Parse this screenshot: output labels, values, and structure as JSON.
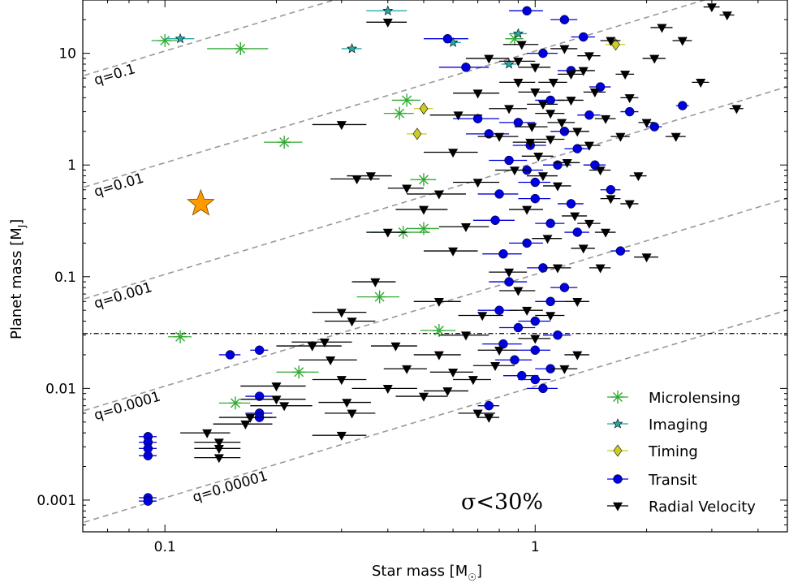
{
  "chart_data": {
    "type": "scatter",
    "xlabel": "Star mass [M",
    "xlabel_sub": "☉",
    "xlabel_close": "]",
    "ylabel": "Planet mass [M",
    "ylabel_sub": "J",
    "ylabel_close": "]",
    "xscale": "log",
    "yscale": "log",
    "xlim": [
      0.06,
      4.8
    ],
    "ylim": [
      0.00052,
      30
    ],
    "xticks": [
      {
        "v": 0.1,
        "label": "0.1"
      },
      {
        "v": 1,
        "label": "1"
      }
    ],
    "yticks": [
      {
        "v": 0.001,
        "label": "0.001"
      },
      {
        "v": 0.01,
        "label": "0.01"
      },
      {
        "v": 0.1,
        "label": "0.1"
      },
      {
        "v": 1,
        "label": "1"
      },
      {
        "v": 10,
        "label": "10"
      }
    ],
    "hline": 0.031,
    "ratio_lines": [
      {
        "q": 0.1,
        "label": "q=0.1",
        "label_x": 0.065
      },
      {
        "q": 0.01,
        "label": "q=0.01",
        "label_x": 0.065
      },
      {
        "q": 0.001,
        "label": "q=0.001",
        "label_x": 0.065
      },
      {
        "q": 0.0001,
        "label": "q=0.0001",
        "label_x": 0.065
      },
      {
        "q": 1e-05,
        "label": "q=0.00001",
        "label_x": 0.12
      }
    ],
    "annotation": "σ<30%",
    "highlight": {
      "x": 0.125,
      "y": 0.45,
      "color": "#ff9900"
    },
    "legend_position": "lower-right",
    "series": [
      {
        "name": "Microlensing",
        "marker": "asterisk",
        "color": "#33aa33",
        "points": [
          [
            0.1,
            13,
            0.008
          ],
          [
            0.16,
            11,
            0.03
          ],
          [
            0.21,
            1.6,
            0.025
          ],
          [
            0.11,
            0.029,
            0.008
          ],
          [
            0.23,
            0.014,
            0.03
          ],
          [
            0.155,
            0.0074,
            0.015
          ],
          [
            0.45,
            3.8,
            0.04
          ],
          [
            0.43,
            2.9,
            0.04
          ],
          [
            0.5,
            0.74,
            0.04
          ],
          [
            0.44,
            0.25,
            0.08
          ],
          [
            0.5,
            0.27,
            0.05
          ],
          [
            0.38,
            0.066,
            0.05
          ],
          [
            0.55,
            0.033,
            0.06
          ],
          [
            0.88,
            13.5,
            0.05
          ]
        ]
      },
      {
        "name": "Imaging",
        "marker": "star",
        "color": "#22aaaa",
        "points": [
          [
            0.11,
            13.5,
            0.01
          ],
          [
            0.4,
            24,
            0.05
          ],
          [
            0.32,
            11,
            0.02
          ],
          [
            0.6,
            12.5,
            0.03
          ],
          [
            0.9,
            15,
            0.05
          ],
          [
            0.85,
            8,
            0.04
          ]
        ]
      },
      {
        "name": "Timing",
        "marker": "diamond",
        "color": "#cccc22",
        "points": [
          [
            0.5,
            3.2,
            0.03
          ],
          [
            0.48,
            1.9,
            0.03
          ],
          [
            1.65,
            12,
            0.1
          ]
        ]
      },
      {
        "name": "Transit",
        "marker": "circle",
        "color": "#0000dd",
        "points": [
          [
            0.09,
            0.0037,
            0.005
          ],
          [
            0.09,
            0.0033,
            0.005
          ],
          [
            0.09,
            0.0029,
            0.005
          ],
          [
            0.09,
            0.0025,
            0.005
          ],
          [
            0.09,
            0.00105,
            0.005
          ],
          [
            0.09,
            0.00098,
            0.005
          ],
          [
            0.15,
            0.02,
            0.01
          ],
          [
            0.18,
            0.022,
            0.01
          ],
          [
            0.18,
            0.0085,
            0.015
          ],
          [
            0.18,
            0.006,
            0.015
          ],
          [
            0.18,
            0.0055,
            0.015
          ],
          [
            0.58,
            13.5,
            0.08
          ],
          [
            0.65,
            7.5,
            0.1
          ],
          [
            0.95,
            24,
            0.1
          ],
          [
            0.7,
            2.6,
            0.1
          ],
          [
            0.75,
            1.9,
            0.1
          ],
          [
            0.85,
            1.1,
            0.1
          ],
          [
            0.8,
            0.55,
            0.1
          ],
          [
            0.78,
            0.32,
            0.1
          ],
          [
            0.82,
            0.16,
            0.1
          ],
          [
            0.85,
            0.09,
            0.1
          ],
          [
            0.8,
            0.05,
            0.1
          ],
          [
            0.82,
            0.025,
            0.1
          ],
          [
            0.88,
            0.018,
            0.1
          ],
          [
            0.92,
            0.013,
            0.1
          ],
          [
            1.0,
            0.012,
            0.1
          ],
          [
            1.05,
            0.01,
            0.1
          ],
          [
            1.1,
            0.015,
            0.1
          ],
          [
            1.0,
            0.04,
            0.1
          ],
          [
            1.1,
            0.06,
            0.1
          ],
          [
            1.2,
            0.08,
            0.1
          ],
          [
            1.05,
            0.12,
            0.1
          ],
          [
            0.95,
            0.2,
            0.1
          ],
          [
            1.1,
            0.3,
            0.1
          ],
          [
            1.25,
            0.45,
            0.1
          ],
          [
            1.0,
            0.7,
            0.1
          ],
          [
            1.15,
            1.0,
            0.1
          ],
          [
            1.3,
            1.4,
            0.1
          ],
          [
            1.2,
            2.0,
            0.1
          ],
          [
            1.4,
            2.8,
            0.1
          ],
          [
            1.1,
            3.8,
            0.1
          ],
          [
            1.5,
            5.0,
            0.1
          ],
          [
            1.25,
            7.0,
            0.1
          ],
          [
            1.05,
            10,
            0.1
          ],
          [
            1.35,
            14,
            0.1
          ],
          [
            1.2,
            20,
            0.1
          ],
          [
            0.97,
            1.5,
            0.1
          ],
          [
            0.9,
            2.4,
            0.1
          ],
          [
            1.45,
            1.0,
            0.1
          ],
          [
            1.6,
            0.6,
            0.1
          ],
          [
            1.7,
            0.17,
            0.1
          ],
          [
            2.5,
            3.4,
            0.1
          ],
          [
            2.1,
            2.2,
            0.1
          ],
          [
            1.8,
            3.0,
            0.1
          ],
          [
            1.0,
            0.5,
            0.1
          ],
          [
            0.95,
            0.9,
            0.1
          ],
          [
            1.3,
            0.25,
            0.1
          ],
          [
            1.0,
            0.022,
            0.1
          ],
          [
            0.9,
            0.035,
            0.1
          ],
          [
            1.15,
            0.03,
            0.1
          ],
          [
            0.75,
            0.007,
            0.05
          ]
        ]
      },
      {
        "name": "Radial Velocity",
        "marker": "tri_down",
        "color": "#000000",
        "points": [
          [
            0.4,
            19,
            0.05
          ],
          [
            0.3,
            2.3,
            0.05
          ],
          [
            0.33,
            0.75,
            0.05
          ],
          [
            0.36,
            0.8,
            0.05
          ],
          [
            0.45,
            0.62,
            0.05
          ],
          [
            0.4,
            0.25,
            0.05
          ],
          [
            0.37,
            0.09,
            0.05
          ],
          [
            0.3,
            0.048,
            0.05
          ],
          [
            0.32,
            0.04,
            0.05
          ],
          [
            0.27,
            0.026,
            0.05
          ],
          [
            0.25,
            0.024,
            0.05
          ],
          [
            0.28,
            0.018,
            0.05
          ],
          [
            0.2,
            0.0105,
            0.04
          ],
          [
            0.2,
            0.008,
            0.04
          ],
          [
            0.21,
            0.007,
            0.04
          ],
          [
            0.17,
            0.0055,
            0.03
          ],
          [
            0.165,
            0.0048,
            0.03
          ],
          [
            0.13,
            0.004,
            0.02
          ],
          [
            0.14,
            0.0033,
            0.02
          ],
          [
            0.14,
            0.0029,
            0.02
          ],
          [
            0.14,
            0.0024,
            0.02
          ],
          [
            0.3,
            0.012,
            0.05
          ],
          [
            0.31,
            0.0075,
            0.05
          ],
          [
            0.32,
            0.006,
            0.05
          ],
          [
            0.3,
            0.0038,
            0.05
          ],
          [
            0.4,
            0.01,
            0.08
          ],
          [
            0.5,
            0.0085,
            0.08
          ],
          [
            0.6,
            0.014,
            0.08
          ],
          [
            0.55,
            0.02,
            0.08
          ],
          [
            0.65,
            0.03,
            0.1
          ],
          [
            0.7,
            0.006,
            0.08
          ],
          [
            0.75,
            0.0055,
            0.05
          ],
          [
            0.6,
            0.17,
            0.1
          ],
          [
            0.65,
            0.28,
            0.1
          ],
          [
            0.55,
            0.55,
            0.1
          ],
          [
            0.6,
            1.3,
            0.1
          ],
          [
            0.62,
            2.8,
            0.1
          ],
          [
            0.7,
            4.4,
            0.1
          ],
          [
            0.75,
            9,
            0.1
          ],
          [
            0.8,
            1.8,
            0.1
          ],
          [
            0.85,
            3.2,
            0.1
          ],
          [
            0.88,
            0.9,
            0.1
          ],
          [
            0.9,
            5.5,
            0.1
          ],
          [
            0.92,
            12,
            0.1
          ],
          [
            0.95,
            0.4,
            0.1
          ],
          [
            0.98,
            2.2,
            0.1
          ],
          [
            1.0,
            7.5,
            0.1
          ],
          [
            1.02,
            1.2,
            0.1
          ],
          [
            1.05,
            3.5,
            0.1
          ],
          [
            1.08,
            0.22,
            0.1
          ],
          [
            1.1,
            1.7,
            0.1
          ],
          [
            1.12,
            5.5,
            0.1
          ],
          [
            1.15,
            0.65,
            0.1
          ],
          [
            1.18,
            2.4,
            0.1
          ],
          [
            1.2,
            11,
            0.1
          ],
          [
            1.22,
            1.05,
            0.1
          ],
          [
            1.25,
            3.8,
            0.1
          ],
          [
            1.28,
            0.35,
            0.1
          ],
          [
            1.3,
            2.0,
            0.1
          ],
          [
            1.35,
            7,
            0.1
          ],
          [
            1.4,
            1.5,
            0.1
          ],
          [
            1.45,
            4.5,
            0.1
          ],
          [
            1.5,
            0.9,
            0.1
          ],
          [
            1.55,
            2.6,
            0.1
          ],
          [
            1.6,
            13,
            0.1
          ],
          [
            1.7,
            1.8,
            0.1
          ],
          [
            1.8,
            4,
            0.1
          ],
          [
            1.9,
            0.8,
            0.1
          ],
          [
            2.0,
            2.4,
            0.1
          ],
          [
            2.2,
            17,
            0.15
          ],
          [
            2.5,
            13,
            0.15
          ],
          [
            3.0,
            26,
            0.15
          ],
          [
            3.3,
            22,
            0.15
          ],
          [
            3.5,
            3.2,
            0.15
          ],
          [
            2.8,
            5.5,
            0.15
          ],
          [
            2.4,
            1.8,
            0.15
          ],
          [
            2.0,
            0.15,
            0.15
          ],
          [
            1.5,
            0.12,
            0.1
          ],
          [
            1.3,
            0.06,
            0.1
          ],
          [
            1.1,
            0.045,
            0.1
          ],
          [
            1.0,
            0.028,
            0.1
          ],
          [
            0.95,
            0.05,
            0.1
          ],
          [
            0.9,
            0.075,
            0.1
          ],
          [
            0.85,
            0.11,
            0.1
          ],
          [
            0.8,
            0.022,
            0.1
          ],
          [
            0.78,
            0.016,
            0.1
          ],
          [
            1.2,
            0.015,
            0.1
          ],
          [
            1.3,
            0.02,
            0.1
          ],
          [
            1.4,
            0.3,
            0.1
          ],
          [
            1.6,
            0.5,
            0.1
          ],
          [
            1.05,
            0.8,
            0.1
          ],
          [
            0.97,
            1.6,
            0.1
          ],
          [
            1.1,
            2.9,
            0.1
          ],
          [
            1.0,
            4.5,
            0.1
          ],
          [
            0.9,
            8.5,
            0.1
          ],
          [
            1.25,
            6.5,
            0.1
          ],
          [
            1.4,
            9.5,
            0.1
          ],
          [
            1.75,
            6.5,
            0.1
          ],
          [
            2.1,
            9,
            0.15
          ],
          [
            0.7,
            0.7,
            0.1
          ],
          [
            0.72,
            0.045,
            0.1
          ],
          [
            0.68,
            0.012,
            0.08
          ],
          [
            0.58,
            0.0095,
            0.08
          ],
          [
            0.45,
            0.015,
            0.06
          ],
          [
            0.42,
            0.024,
            0.06
          ],
          [
            0.5,
            0.4,
            0.08
          ],
          [
            0.55,
            0.06,
            0.08
          ],
          [
            1.15,
            0.12,
            0.1
          ],
          [
            1.35,
            0.18,
            0.1
          ],
          [
            1.55,
            0.25,
            0.1
          ],
          [
            1.8,
            0.45,
            0.1
          ]
        ]
      }
    ]
  }
}
